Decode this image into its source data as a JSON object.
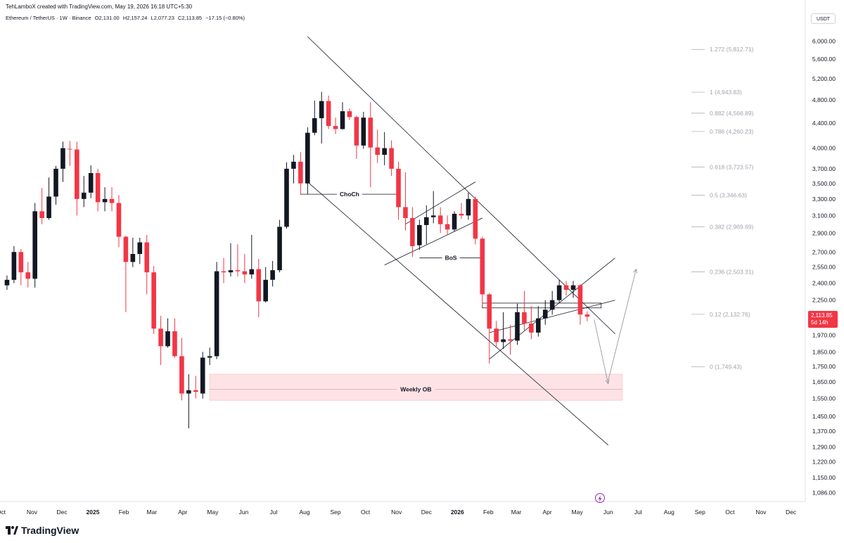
{
  "credit": "TehLamboX created with TradingView.com, May 19, 2026 16:18 UTC+5:30",
  "symbol": {
    "name": "Ethereum / TetherUS · 1W · Binance",
    "open": "O2,131.00",
    "high": "H2,157.24",
    "low": "L2,077.23",
    "close": "C2,113.85",
    "change": "−17.15 (−0.80%)"
  },
  "currency": "USDT",
  "price_tag": {
    "price": "2,113.85",
    "countdown": "5d 14h"
  },
  "brand": {
    "logo_text": "TradingView"
  },
  "colors": {
    "up": "#131722",
    "down": "#f23645",
    "ob_zone": "#fde3e6",
    "fib": "#a0a4ac",
    "line": "#131722"
  },
  "chart_data": {
    "type": "candlestick",
    "x_tick_labels": [
      "Oct",
      "Nov",
      "Dec",
      "2025",
      "Feb",
      "Mar",
      "Apr",
      "May",
      "Jun",
      "Jul",
      "Aug",
      "Sep",
      "Oct",
      "Nov",
      "Dec",
      "2026",
      "Feb",
      "Mar",
      "Apr",
      "May",
      "Jun",
      "Jul",
      "Aug",
      "Sep",
      "Oct",
      "Nov",
      "Dec"
    ],
    "x_ticks": [
      "2024-10-01",
      "2024-11-01",
      "2024-12-01",
      "2025-01-01",
      "2025-02-01",
      "2025-03-01",
      "2025-04-01",
      "2025-05-01",
      "2025-06-01",
      "2025-07-01",
      "2025-08-01",
      "2025-09-01",
      "2025-10-01",
      "2025-11-01",
      "2025-12-01",
      "2026-01-01",
      "2026-02-01",
      "2026-03-01",
      "2026-04-01",
      "2026-05-01",
      "2026-06-01",
      "2026-07-01",
      "2026-08-01",
      "2026-09-01",
      "2026-10-01",
      "2026-11-01",
      "2026-12-01"
    ],
    "y_tick_labels": [
      "6,000.00",
      "5,600.00",
      "5,200.00",
      "4,800.00",
      "4,400.00",
      "4,000.00",
      "3,700.00",
      "3,500.00",
      "3,300.00",
      "3,100.00",
      "2,900.00",
      "2,700.00",
      "2,550.00",
      "2,400.00",
      "2,250.00",
      "1,970.00",
      "1,850.00",
      "1,750.00",
      "1,650.00",
      "1,550.00",
      "1,450.00",
      "1,370.00",
      "1,290.00",
      "1,220.00",
      "1,150.00",
      "1,086.00"
    ],
    "y_ticks": [
      6000,
      5600,
      5200,
      4800,
      4400,
      4000,
      3700,
      3500,
      3300,
      3100,
      2900,
      2700,
      2550,
      2400,
      2250,
      1970,
      1850,
      1750,
      1650,
      1550,
      1450,
      1370,
      1290,
      1220,
      1150,
      1086
    ],
    "y_scale": "log",
    "ylim": [
      1050,
      6300
    ],
    "xlim": [
      "2024-09-30",
      "2026-12-14"
    ],
    "candles": [
      {
        "t": "2024-10-07",
        "o": 2380,
        "h": 2470,
        "l": 2340,
        "c": 2430
      },
      {
        "t": "2024-10-14",
        "o": 2430,
        "h": 2760,
        "l": 2400,
        "c": 2700
      },
      {
        "t": "2024-10-21",
        "o": 2700,
        "h": 2730,
        "l": 2380,
        "c": 2500
      },
      {
        "t": "2024-10-28",
        "o": 2500,
        "h": 2600,
        "l": 2360,
        "c": 2440
      },
      {
        "t": "2024-11-04",
        "o": 2440,
        "h": 3250,
        "l": 2360,
        "c": 3150
      },
      {
        "t": "2024-11-11",
        "o": 3150,
        "h": 3440,
        "l": 3000,
        "c": 3070
      },
      {
        "t": "2024-11-18",
        "o": 3070,
        "h": 3580,
        "l": 3050,
        "c": 3330
      },
      {
        "t": "2024-11-25",
        "o": 3330,
        "h": 3740,
        "l": 3230,
        "c": 3700
      },
      {
        "t": "2024-12-02",
        "o": 3700,
        "h": 4100,
        "l": 3520,
        "c": 4000
      },
      {
        "t": "2024-12-09",
        "o": 3990,
        "h": 4110,
        "l": 3740,
        "c": 3980
      },
      {
        "t": "2024-12-16",
        "o": 3980,
        "h": 4100,
        "l": 3100,
        "c": 3300
      },
      {
        "t": "2024-12-23",
        "o": 3300,
        "h": 3600,
        "l": 3200,
        "c": 3380
      },
      {
        "t": "2024-12-30",
        "o": 3380,
        "h": 3750,
        "l": 3310,
        "c": 3640
      },
      {
        "t": "2025-01-06",
        "o": 3640,
        "h": 3700,
        "l": 3150,
        "c": 3260
      },
      {
        "t": "2025-01-13",
        "o": 3260,
        "h": 3450,
        "l": 3150,
        "c": 3300
      },
      {
        "t": "2025-01-20",
        "o": 3300,
        "h": 3450,
        "l": 3150,
        "c": 3250
      },
      {
        "t": "2025-01-27",
        "o": 3250,
        "h": 3350,
        "l": 2750,
        "c": 2860
      },
      {
        "t": "2025-02-03",
        "o": 2860,
        "h": 2870,
        "l": 2150,
        "c": 2600
      },
      {
        "t": "2025-02-10",
        "o": 2600,
        "h": 2850,
        "l": 2550,
        "c": 2680
      },
      {
        "t": "2025-02-17",
        "o": 2680,
        "h": 2850,
        "l": 2580,
        "c": 2800
      },
      {
        "t": "2025-02-24",
        "o": 2800,
        "h": 2880,
        "l": 2300,
        "c": 2500
      },
      {
        "t": "2025-03-03",
        "o": 2500,
        "h": 2560,
        "l": 1980,
        "c": 2020
      },
      {
        "t": "2025-03-10",
        "o": 2020,
        "h": 2120,
        "l": 1760,
        "c": 1890
      },
      {
        "t": "2025-03-17",
        "o": 1890,
        "h": 2100,
        "l": 1880,
        "c": 2000
      },
      {
        "t": "2025-03-24",
        "o": 2000,
        "h": 2100,
        "l": 1810,
        "c": 1820
      },
      {
        "t": "2025-03-31",
        "o": 1820,
        "h": 1950,
        "l": 1540,
        "c": 1580
      },
      {
        "t": "2025-04-07",
        "o": 1580,
        "h": 1700,
        "l": 1385,
        "c": 1600
      },
      {
        "t": "2025-04-14",
        "o": 1600,
        "h": 1690,
        "l": 1550,
        "c": 1590
      },
      {
        "t": "2025-04-21",
        "o": 1580,
        "h": 1850,
        "l": 1550,
        "c": 1810
      },
      {
        "t": "2025-04-28",
        "o": 1810,
        "h": 1880,
        "l": 1760,
        "c": 1820
      },
      {
        "t": "2025-05-05",
        "o": 1820,
        "h": 2600,
        "l": 1800,
        "c": 2510
      },
      {
        "t": "2025-05-12",
        "o": 2510,
        "h": 2640,
        "l": 2400,
        "c": 2500
      },
      {
        "t": "2025-05-19",
        "o": 2500,
        "h": 2790,
        "l": 2460,
        "c": 2520
      },
      {
        "t": "2025-05-26",
        "o": 2520,
        "h": 2780,
        "l": 2460,
        "c": 2510
      },
      {
        "t": "2025-06-02",
        "o": 2510,
        "h": 2680,
        "l": 2400,
        "c": 2480
      },
      {
        "t": "2025-06-09",
        "o": 2480,
        "h": 2880,
        "l": 2440,
        "c": 2530
      },
      {
        "t": "2025-06-16",
        "o": 2530,
        "h": 2630,
        "l": 2110,
        "c": 2240
      },
      {
        "t": "2025-06-23",
        "o": 2240,
        "h": 2550,
        "l": 2230,
        "c": 2430
      },
      {
        "t": "2025-06-30",
        "o": 2430,
        "h": 2610,
        "l": 2370,
        "c": 2520
      },
      {
        "t": "2025-07-07",
        "o": 2520,
        "h": 3050,
        "l": 2500,
        "c": 2970
      },
      {
        "t": "2025-07-14",
        "o": 2970,
        "h": 3790,
        "l": 2950,
        "c": 3700
      },
      {
        "t": "2025-07-21",
        "o": 3700,
        "h": 3900,
        "l": 3500,
        "c": 3800
      },
      {
        "t": "2025-07-28",
        "o": 3800,
        "h": 3940,
        "l": 3350,
        "c": 3500
      },
      {
        "t": "2025-08-04",
        "o": 3500,
        "h": 4330,
        "l": 3360,
        "c": 4240
      },
      {
        "t": "2025-08-11",
        "o": 4240,
        "h": 4790,
        "l": 4200,
        "c": 4480
      },
      {
        "t": "2025-08-18",
        "o": 4480,
        "h": 4950,
        "l": 4070,
        "c": 4780
      },
      {
        "t": "2025-08-25",
        "o": 4780,
        "h": 4880,
        "l": 4300,
        "c": 4350
      },
      {
        "t": "2025-09-01",
        "o": 4350,
        "h": 4490,
        "l": 4220,
        "c": 4300
      },
      {
        "t": "2025-09-08",
        "o": 4300,
        "h": 4760,
        "l": 4290,
        "c": 4600
      },
      {
        "t": "2025-09-15",
        "o": 4600,
        "h": 4650,
        "l": 4450,
        "c": 4500
      },
      {
        "t": "2025-09-22",
        "o": 4500,
        "h": 4520,
        "l": 3840,
        "c": 4040
      },
      {
        "t": "2025-09-29",
        "o": 4040,
        "h": 4590,
        "l": 3990,
        "c": 4490
      },
      {
        "t": "2025-10-06",
        "o": 4490,
        "h": 4760,
        "l": 3450,
        "c": 4010
      },
      {
        "t": "2025-10-13",
        "o": 4010,
        "h": 4290,
        "l": 3780,
        "c": 3900
      },
      {
        "t": "2025-10-20",
        "o": 3900,
        "h": 4250,
        "l": 3750,
        "c": 4000
      },
      {
        "t": "2025-10-27",
        "o": 4000,
        "h": 4120,
        "l": 3600,
        "c": 3700
      },
      {
        "t": "2025-11-03",
        "o": 3700,
        "h": 3800,
        "l": 3050,
        "c": 3200
      },
      {
        "t": "2025-11-10",
        "o": 3200,
        "h": 3650,
        "l": 2930,
        "c": 3070
      },
      {
        "t": "2025-11-17",
        "o": 3070,
        "h": 3200,
        "l": 2650,
        "c": 2760
      },
      {
        "t": "2025-11-24",
        "o": 2770,
        "h": 3050,
        "l": 2720,
        "c": 2990
      },
      {
        "t": "2025-12-01",
        "o": 2990,
        "h": 3220,
        "l": 2780,
        "c": 3080
      },
      {
        "t": "2025-12-08",
        "o": 3080,
        "h": 3400,
        "l": 3010,
        "c": 3100
      },
      {
        "t": "2025-12-15",
        "o": 3100,
        "h": 3200,
        "l": 2900,
        "c": 3000
      },
      {
        "t": "2025-12-22",
        "o": 3000,
        "h": 3100,
        "l": 2880,
        "c": 2940
      },
      {
        "t": "2025-12-29",
        "o": 2940,
        "h": 3150,
        "l": 2920,
        "c": 3120
      },
      {
        "t": "2026-01-05",
        "o": 3120,
        "h": 3250,
        "l": 3060,
        "c": 3100
      },
      {
        "t": "2026-01-12",
        "o": 3100,
        "h": 3380,
        "l": 3050,
        "c": 3300
      },
      {
        "t": "2026-01-19",
        "o": 3300,
        "h": 3330,
        "l": 2780,
        "c": 2840
      },
      {
        "t": "2026-01-26",
        "o": 2840,
        "h": 2860,
        "l": 2200,
        "c": 2300
      },
      {
        "t": "2026-02-02",
        "o": 2300,
        "h": 2310,
        "l": 1770,
        "c": 2020
      },
      {
        "t": "2026-02-09",
        "o": 2020,
        "h": 2080,
        "l": 1880,
        "c": 1920
      },
      {
        "t": "2026-02-16",
        "o": 1920,
        "h": 2150,
        "l": 1870,
        "c": 1940
      },
      {
        "t": "2026-02-23",
        "o": 1940,
        "h": 2050,
        "l": 1830,
        "c": 1930
      },
      {
        "t": "2026-03-02",
        "o": 1930,
        "h": 2220,
        "l": 1900,
        "c": 2150
      },
      {
        "t": "2026-03-09",
        "o": 2150,
        "h": 2330,
        "l": 2000,
        "c": 2060
      },
      {
        "t": "2026-03-16",
        "o": 2060,
        "h": 2200,
        "l": 1940,
        "c": 1990
      },
      {
        "t": "2026-03-23",
        "o": 1990,
        "h": 2200,
        "l": 1960,
        "c": 2100
      },
      {
        "t": "2026-03-30",
        "o": 2100,
        "h": 2250,
        "l": 2050,
        "c": 2170
      },
      {
        "t": "2026-04-06",
        "o": 2170,
        "h": 2330,
        "l": 2130,
        "c": 2250
      },
      {
        "t": "2026-04-13",
        "o": 2250,
        "h": 2430,
        "l": 2230,
        "c": 2380
      },
      {
        "t": "2026-04-20",
        "o": 2380,
        "h": 2420,
        "l": 2290,
        "c": 2340
      },
      {
        "t": "2026-04-27",
        "o": 2340,
        "h": 2420,
        "l": 2270,
        "c": 2380
      },
      {
        "t": "2026-05-04",
        "o": 2380,
        "h": 2390,
        "l": 2050,
        "c": 2131
      },
      {
        "t": "2026-05-11",
        "o": 2131,
        "h": 2157.24,
        "l": 2077.23,
        "c": 2113.85
      }
    ],
    "fib_levels": [
      {
        "label": "1.272 (5,812.71)",
        "value": 5812.71
      },
      {
        "label": "1 (4,943.83)",
        "value": 4943.83
      },
      {
        "label": "0.882 (4,566.89)",
        "value": 4566.89
      },
      {
        "label": "0.786 (4,260.23)",
        "value": 4260.23
      },
      {
        "label": "0.618 (3,723.57)",
        "value": 3723.57
      },
      {
        "label": "0.5 (3,346.63)",
        "value": 3346.63
      },
      {
        "label": "0.382 (2,969.69)",
        "value": 2969.69
      },
      {
        "label": "0.236 (2,503.31)",
        "value": 2503.31
      },
      {
        "label": "0.12 (2,132.76)",
        "value": 2132.76
      },
      {
        "label": "0 (1,749.43)",
        "value": 1749.43
      }
    ],
    "annotations": {
      "choch": {
        "text": "ChoCh",
        "from_t": "2025-07-28",
        "to_t": "2025-11-03",
        "price": 3360
      },
      "bos": {
        "text": "BoS",
        "from_t": "2025-11-24",
        "to_t": "2026-01-26",
        "price": 2640
      },
      "weekly_ob": {
        "text": "Weekly OB",
        "from_t": "2025-04-28",
        "to_t": "2026-06-15",
        "top": 1700,
        "bottom": 1540,
        "mid": 1605
      },
      "support_box": {
        "from_t": "2026-01-26",
        "to_t": "2026-05-25",
        "top": 2225,
        "bottom": 2185
      }
    },
    "trend_lines": [
      {
        "from": [
          "2025-08-04",
          6100
        ],
        "to": [
          "2026-06-08",
          1980
        ]
      },
      {
        "from": [
          "2025-08-04",
          3520
        ],
        "to": [
          "2026-06-01",
          1300
        ]
      },
      {
        "from": [
          "2025-11-10",
          3000
        ],
        "to": [
          "2026-01-19",
          3520
        ]
      },
      {
        "from": [
          "2025-10-20",
          2570
        ],
        "to": [
          "2026-01-26",
          3070
        ]
      },
      {
        "from": [
          "2026-02-02",
          1800
        ],
        "to": [
          "2026-06-08",
          2640
        ]
      },
      {
        "from": [
          "2026-02-02",
          1990
        ],
        "to": [
          "2026-06-08",
          2250
        ]
      }
    ],
    "projection_arrows": [
      {
        "from": [
          "2026-05-18",
          2090
        ],
        "to": [
          "2026-06-01",
          1640
        ]
      },
      {
        "from": [
          "2026-06-01",
          1660
        ],
        "to": [
          "2026-06-29",
          2530
        ]
      }
    ]
  }
}
